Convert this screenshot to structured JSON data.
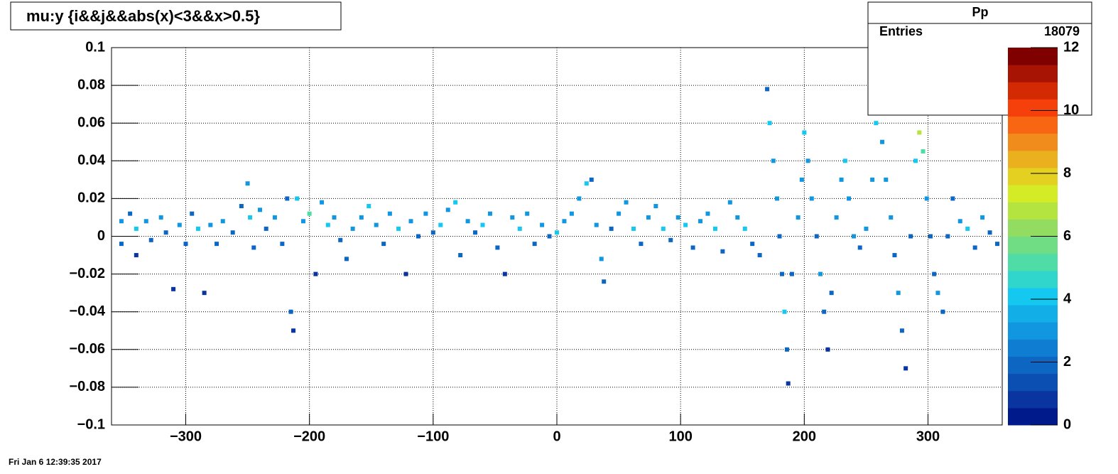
{
  "chart_data": {
    "type": "colz",
    "title": "mu:y {i&&j&&abs(x)<3&&x>0.5}",
    "stats": {
      "name": "Pp",
      "rows": [
        [
          "Entries",
          "18079"
        ]
      ]
    },
    "date": "Fri Jan  6 12:39:35 2017",
    "xlim": [
      -360,
      360
    ],
    "xticks": [
      {
        "value": -300,
        "label": "−300"
      },
      {
        "value": -200,
        "label": "−200"
      },
      {
        "value": -100,
        "label": "−100"
      },
      0,
      100,
      200,
      300
    ],
    "ylim": [
      -0.1,
      0.1
    ],
    "yticks": [
      {
        "value": -0.1,
        "label": "−0.1"
      },
      {
        "value": -0.08,
        "label": "−0.08"
      },
      {
        "value": -0.06,
        "label": "−0.06"
      },
      {
        "value": -0.04,
        "label": "−0.04"
      },
      {
        "value": -0.02,
        "label": "−0.02"
      },
      0,
      0.02,
      0.04,
      0.06,
      0.08,
      0.1
    ],
    "zlim": [
      0,
      12
    ],
    "zticks": [
      0,
      2,
      4,
      6,
      8,
      10,
      12
    ],
    "grid": true,
    "palette": [
      "#001a8c",
      "#0a35a0",
      "#0b4fb2",
      "#0d66c2",
      "#0f7ed2",
      "#1196e0",
      "#12aee8",
      "#14c8f0",
      "#30d6cc",
      "#50dca6",
      "#70dc84",
      "#92dc62",
      "#b4e440",
      "#d4ec26",
      "#e4d020",
      "#eab01e",
      "#f08c1c",
      "#f86614",
      "#f5400c",
      "#d42a04",
      "#a81404",
      "#800000"
    ],
    "cells": [
      [
        -352,
        0.008,
        3
      ],
      [
        -352,
        -0.004,
        2
      ],
      [
        -345,
        0.012,
        2
      ],
      [
        -340,
        0.004,
        4
      ],
      [
        -340,
        -0.01,
        1
      ],
      [
        -332,
        0.008,
        3
      ],
      [
        -328,
        -0.002,
        2
      ],
      [
        -320,
        0.01,
        3
      ],
      [
        -316,
        0.002,
        2
      ],
      [
        -310,
        -0.028,
        1
      ],
      [
        -305,
        0.006,
        3
      ],
      [
        -300,
        -0.004,
        2
      ],
      [
        -295,
        0.012,
        2
      ],
      [
        -290,
        0.004,
        4
      ],
      [
        -285,
        -0.03,
        1
      ],
      [
        -280,
        0.006,
        3
      ],
      [
        -275,
        -0.004,
        2
      ],
      [
        -270,
        0.008,
        3
      ],
      [
        -262,
        0.002,
        2
      ],
      [
        -255,
        0.016,
        2
      ],
      [
        -250,
        0.028,
        3
      ],
      [
        -248,
        0.01,
        4
      ],
      [
        -245,
        -0.006,
        2
      ],
      [
        -240,
        0.014,
        3
      ],
      [
        -235,
        0.004,
        2
      ],
      [
        -228,
        0.01,
        3
      ],
      [
        -222,
        -0.004,
        2
      ],
      [
        -218,
        0.02,
        2
      ],
      [
        -215,
        -0.04,
        2
      ],
      [
        -213,
        -0.05,
        1
      ],
      [
        -210,
        0.02,
        4
      ],
      [
        -205,
        0.008,
        3
      ],
      [
        -200,
        0.012,
        5
      ],
      [
        -195,
        -0.02,
        1
      ],
      [
        -190,
        0.018,
        3
      ],
      [
        -185,
        0.006,
        4
      ],
      [
        -180,
        0.01,
        3
      ],
      [
        -175,
        -0.002,
        2
      ],
      [
        -170,
        -0.012,
        2
      ],
      [
        -165,
        0.004,
        3
      ],
      [
        -158,
        0.01,
        3
      ],
      [
        -152,
        0.016,
        4
      ],
      [
        -146,
        0.006,
        3
      ],
      [
        -140,
        -0.004,
        2
      ],
      [
        -135,
        0.012,
        3
      ],
      [
        -128,
        0.004,
        4
      ],
      [
        -122,
        -0.02,
        1
      ],
      [
        -118,
        0.008,
        3
      ],
      [
        -112,
        0,
        2
      ],
      [
        -106,
        0.012,
        3
      ],
      [
        -100,
        0.002,
        2
      ],
      [
        -94,
        0.006,
        4
      ],
      [
        -88,
        0.014,
        3
      ],
      [
        -82,
        0.018,
        4
      ],
      [
        -78,
        -0.01,
        2
      ],
      [
        -72,
        0.008,
        3
      ],
      [
        -66,
        0.002,
        2
      ],
      [
        -60,
        0.006,
        4
      ],
      [
        -54,
        0.012,
        3
      ],
      [
        -48,
        -0.006,
        2
      ],
      [
        -42,
        -0.02,
        1
      ],
      [
        -36,
        0.01,
        3
      ],
      [
        -30,
        0.004,
        4
      ],
      [
        -24,
        0.012,
        3
      ],
      [
        -18,
        -0.004,
        2
      ],
      [
        -12,
        0.006,
        3
      ],
      [
        -6,
        0,
        2
      ],
      [
        0,
        0.002,
        4
      ],
      [
        6,
        0.008,
        3
      ],
      [
        12,
        0.012,
        3
      ],
      [
        18,
        0.02,
        3
      ],
      [
        24,
        0.028,
        4
      ],
      [
        28,
        0.03,
        2
      ],
      [
        32,
        0.006,
        3
      ],
      [
        36,
        -0.012,
        3
      ],
      [
        38,
        -0.024,
        2
      ],
      [
        44,
        0.004,
        2
      ],
      [
        50,
        0.012,
        3
      ],
      [
        56,
        0.018,
        3
      ],
      [
        62,
        0.004,
        4
      ],
      [
        68,
        -0.004,
        2
      ],
      [
        74,
        0.01,
        3
      ],
      [
        80,
        0.016,
        3
      ],
      [
        86,
        0.004,
        4
      ],
      [
        92,
        -0.002,
        2
      ],
      [
        98,
        0.01,
        3
      ],
      [
        104,
        0.006,
        4
      ],
      [
        110,
        -0.006,
        2
      ],
      [
        116,
        0.008,
        3
      ],
      [
        122,
        0.012,
        3
      ],
      [
        128,
        0.004,
        4
      ],
      [
        134,
        -0.008,
        2
      ],
      [
        140,
        0.018,
        3
      ],
      [
        146,
        0.01,
        3
      ],
      [
        152,
        0.004,
        4
      ],
      [
        158,
        -0.004,
        2
      ],
      [
        164,
        -0.01,
        2
      ],
      [
        170,
        0.078,
        2
      ],
      [
        172,
        0.06,
        4
      ],
      [
        175,
        0.04,
        3
      ],
      [
        178,
        0.02,
        3
      ],
      [
        180,
        0,
        2
      ],
      [
        182,
        -0.02,
        2
      ],
      [
        184,
        -0.04,
        4
      ],
      [
        186,
        -0.06,
        2
      ],
      [
        187,
        -0.078,
        1
      ],
      [
        190,
        -0.02,
        2
      ],
      [
        195,
        0.01,
        3
      ],
      [
        198,
        0.03,
        3
      ],
      [
        200,
        0.055,
        4
      ],
      [
        203,
        0.04,
        3
      ],
      [
        206,
        0.02,
        3
      ],
      [
        210,
        0,
        2
      ],
      [
        213,
        -0.02,
        3
      ],
      [
        216,
        -0.04,
        2
      ],
      [
        219,
        -0.06,
        1
      ],
      [
        222,
        -0.03,
        2
      ],
      [
        226,
        0.01,
        3
      ],
      [
        230,
        0.03,
        3
      ],
      [
        233,
        0.04,
        4
      ],
      [
        236,
        0.02,
        3
      ],
      [
        240,
        0,
        3
      ],
      [
        245,
        -0.006,
        2
      ],
      [
        250,
        0.004,
        3
      ],
      [
        255,
        0.03,
        3
      ],
      [
        258,
        0.06,
        4
      ],
      [
        260,
        0.08,
        2
      ],
      [
        263,
        0.05,
        3
      ],
      [
        266,
        0.03,
        3
      ],
      [
        270,
        0.01,
        3
      ],
      [
        273,
        -0.01,
        2
      ],
      [
        276,
        -0.03,
        3
      ],
      [
        279,
        -0.05,
        2
      ],
      [
        282,
        -0.07,
        1
      ],
      [
        286,
        0,
        2
      ],
      [
        290,
        0.04,
        4
      ],
      [
        293,
        0.055,
        7
      ],
      [
        296,
        0.045,
        5
      ],
      [
        299,
        0.02,
        3
      ],
      [
        302,
        0,
        2
      ],
      [
        305,
        -0.02,
        2
      ],
      [
        308,
        -0.03,
        3
      ],
      [
        312,
        -0.04,
        2
      ],
      [
        316,
        0,
        2
      ],
      [
        320,
        0.02,
        2
      ],
      [
        326,
        0.008,
        3
      ],
      [
        332,
        0.004,
        4
      ],
      [
        338,
        -0.006,
        2
      ],
      [
        344,
        0.01,
        3
      ],
      [
        350,
        0.002,
        2
      ],
      [
        356,
        -0.004,
        2
      ]
    ]
  }
}
